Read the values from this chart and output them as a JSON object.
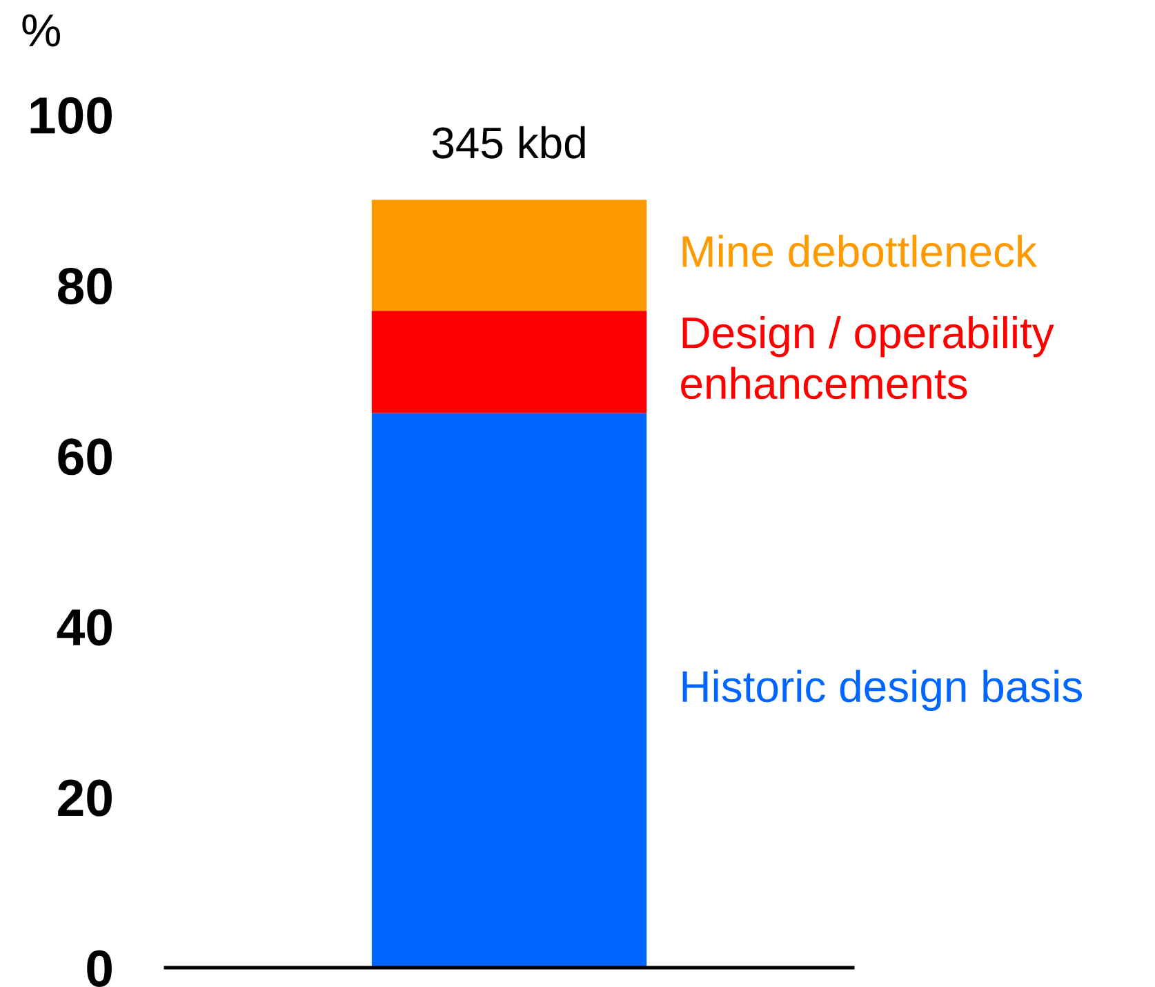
{
  "chart_data": {
    "type": "bar",
    "ylabel": "%",
    "categories": [
      null
    ],
    "stacked": true,
    "series": [
      {
        "name": "Historic design basis",
        "color": "#0066ff",
        "values": [
          65
        ]
      },
      {
        "name": "Design / operability\nenhancements",
        "color": "#ff0000",
        "values": [
          12
        ]
      },
      {
        "name": "Mine debottleneck",
        "color": "#ff9900",
        "values": [
          13
        ]
      }
    ],
    "annotations": [
      {
        "text": "345 kbd",
        "y": 90
      }
    ],
    "ylim": [
      0,
      100
    ],
    "yticks": [
      0,
      20,
      40,
      60,
      80,
      100
    ]
  }
}
